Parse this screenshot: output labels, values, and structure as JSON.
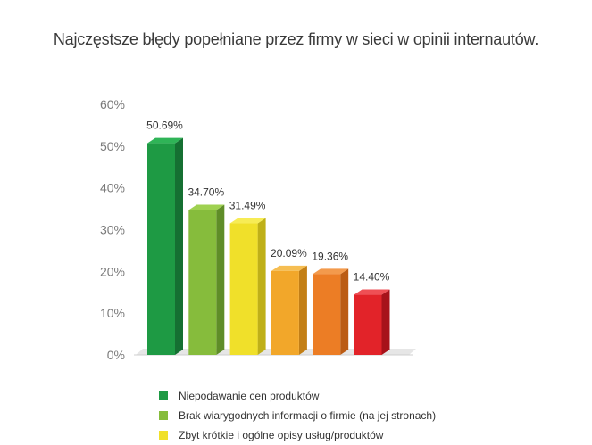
{
  "chart_data": {
    "type": "bar",
    "title": "Najczęstsze błędy popełniane przez firmy w sieci w opinii internautów.",
    "categories": [
      "Niepodawanie cen produktów",
      "Brak wiarygodnych informacji o firmie (na jej stronach)",
      "Zbyt krótkie i ogólne opisy usług/produktów",
      "",
      "",
      ""
    ],
    "values": [
      50.69,
      34.7,
      31.49,
      20.09,
      19.36,
      14.4
    ],
    "data_labels": [
      "50.69%",
      "34.70%",
      "31.49%",
      "20.09%",
      "19.36%",
      "14.40%"
    ],
    "colors": [
      "#1e9a44",
      "#86bc3c",
      "#f0e02a",
      "#f2a72a",
      "#ec7d25",
      "#e22329"
    ],
    "side_colors": [
      "#157032",
      "#5f8d28",
      "#bfb018",
      "#c37f16",
      "#bb5c14",
      "#a7121a"
    ],
    "top_colors": [
      "#2fb457",
      "#9fd151",
      "#f7ec55",
      "#f6be52",
      "#f39a4c",
      "#ef4f55"
    ],
    "yticks": [
      0,
      10,
      20,
      30,
      40,
      50,
      60
    ],
    "ytick_labels": [
      "0%",
      "10%",
      "20%",
      "30%",
      "40%",
      "50%",
      "60%"
    ],
    "ylim": [
      0,
      60
    ],
    "xlabel": "",
    "ylabel": "",
    "grid": false,
    "legend_position": "bottom",
    "legend_entries": [
      "Niepodawanie cen produktów",
      "Brak wiarygodnych informacji o firmie (na jej stronach)",
      "Zbyt krótkie i ogólne opisy usług/produktów"
    ],
    "legend_colors": [
      "#1e9a44",
      "#86bc3c",
      "#f0e02a"
    ]
  }
}
